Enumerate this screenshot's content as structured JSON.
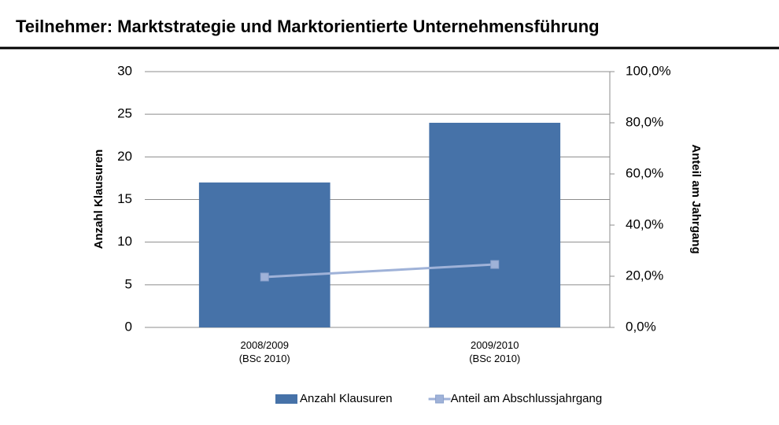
{
  "header": {
    "title": "Teilnehmer: Marktstrategie und Marktorientierte Unternehmensführung"
  },
  "chart_data": {
    "type": "combo",
    "categories": [
      "2008/2009\n(BSc 2010)",
      "2009/2010\n(BSc 2010)"
    ],
    "series": [
      {
        "name": "Anzahl Klausuren",
        "type": "bar",
        "color": "#4672a8",
        "values": [
          17,
          24
        ]
      },
      {
        "name": "Anteil am Abschlussjahrgang",
        "type": "line",
        "axis": "y2",
        "color": "#9fb2d8",
        "values": [
          19.7,
          24.6
        ]
      }
    ],
    "ylabel": "Anzahl Klausuren",
    "y2label": "Anteil am Jahrgang",
    "ylim": [
      0,
      30
    ],
    "yticks": [
      0,
      5,
      10,
      15,
      20,
      25,
      30
    ],
    "y2lim": [
      0,
      100
    ],
    "y2ticks": [
      {
        "value": 0,
        "label": "0,0%"
      },
      {
        "value": 20,
        "label": "20,0%"
      },
      {
        "value": 40,
        "label": "40,0%"
      },
      {
        "value": 60,
        "label": "60,0%"
      },
      {
        "value": 80,
        "label": "80,0%"
      },
      {
        "value": 100,
        "label": "100,0%"
      }
    ],
    "grid": true,
    "legend": "bottom"
  }
}
